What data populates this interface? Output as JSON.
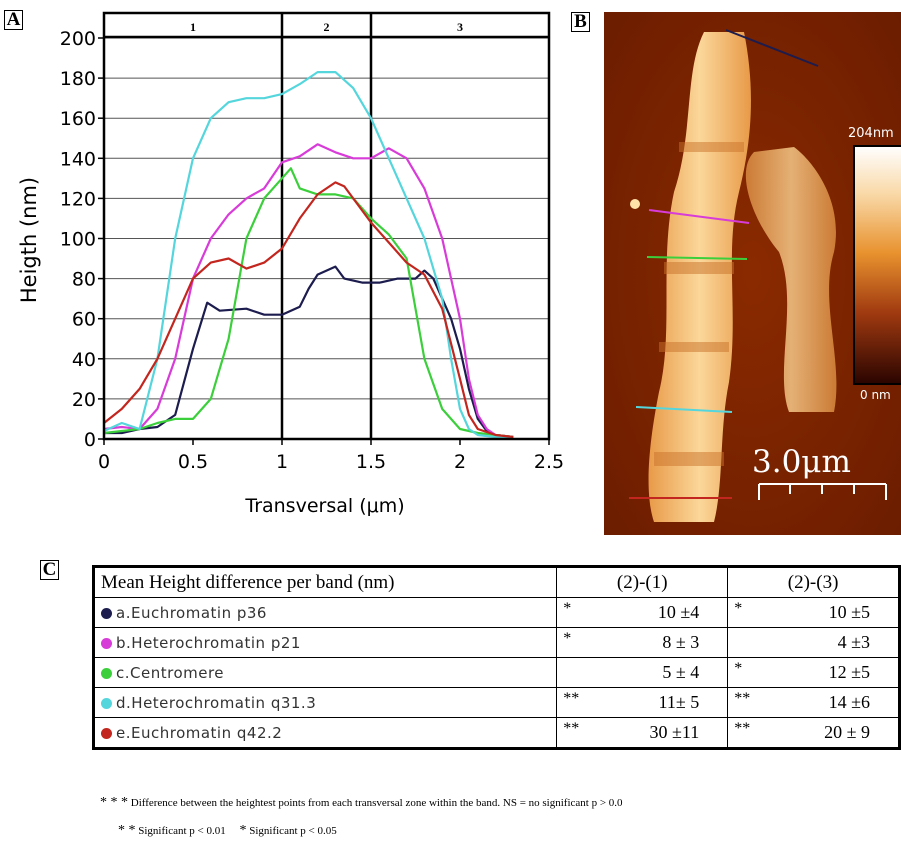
{
  "panels": {
    "a": "A",
    "b": "B",
    "c": "C"
  },
  "chart_data": {
    "type": "line",
    "xlabel": "Transversal (μm)",
    "ylabel": "Heigth (nm)",
    "xlim": [
      0,
      2.5
    ],
    "ylim": [
      0,
      200
    ],
    "xticks": [
      0,
      0.5,
      1,
      1.5,
      2,
      2.5
    ],
    "xtick_labels": [
      "0",
      "0.5",
      "1",
      "1.5",
      "2",
      "2.5"
    ],
    "yticks": [
      0,
      20,
      40,
      60,
      80,
      100,
      120,
      140,
      160,
      180,
      200
    ],
    "grid": "horizontal",
    "zones": [
      "1",
      "2",
      "3"
    ],
    "zone_boundaries": [
      1,
      1.5
    ],
    "series": [
      {
        "color": "#1c1c4e",
        "x": [
          0,
          0.1,
          0.2,
          0.3,
          0.4,
          0.5,
          0.58,
          0.65,
          0.8,
          0.9,
          1.0,
          1.1,
          1.15,
          1.2,
          1.3,
          1.35,
          1.45,
          1.55,
          1.65,
          1.75,
          1.8,
          1.85,
          1.9,
          1.95,
          2.0,
          2.05,
          2.1,
          2.15,
          2.2,
          2.3
        ],
        "y": [
          3,
          3,
          5,
          6,
          12,
          45,
          68,
          64,
          65,
          62,
          62,
          66,
          75,
          82,
          86,
          80,
          78,
          78,
          80,
          80,
          84,
          80,
          70,
          60,
          45,
          25,
          10,
          4,
          2,
          1
        ]
      },
      {
        "color": "#d83cd8",
        "x": [
          0,
          0.1,
          0.2,
          0.3,
          0.4,
          0.5,
          0.6,
          0.7,
          0.8,
          0.9,
          1.0,
          1.1,
          1.2,
          1.3,
          1.4,
          1.5,
          1.6,
          1.7,
          1.8,
          1.9,
          2.0,
          2.05,
          2.1,
          2.15,
          2.2,
          2.3
        ],
        "y": [
          5,
          6,
          5,
          15,
          40,
          80,
          100,
          112,
          120,
          125,
          138,
          141,
          147,
          143,
          140,
          140,
          145,
          140,
          125,
          100,
          60,
          30,
          12,
          5,
          2,
          1
        ]
      },
      {
        "color": "#3ccf3c",
        "x": [
          0,
          0.1,
          0.2,
          0.3,
          0.4,
          0.5,
          0.6,
          0.7,
          0.8,
          0.9,
          1.0,
          1.05,
          1.1,
          1.2,
          1.3,
          1.4,
          1.5,
          1.6,
          1.7,
          1.75,
          1.8,
          1.9,
          2.0,
          2.1,
          2.2,
          2.3
        ],
        "y": [
          3,
          4,
          5,
          8,
          10,
          10,
          20,
          50,
          100,
          120,
          130,
          135,
          125,
          122,
          122,
          120,
          110,
          102,
          90,
          65,
          40,
          15,
          5,
          3,
          2,
          1
        ]
      },
      {
        "color": "#55d6dc",
        "x": [
          0,
          0.1,
          0.2,
          0.3,
          0.4,
          0.5,
          0.6,
          0.7,
          0.8,
          0.9,
          1.0,
          1.1,
          1.2,
          1.3,
          1.4,
          1.5,
          1.6,
          1.7,
          1.8,
          1.9,
          1.95,
          2.0,
          2.05,
          2.1,
          2.2,
          2.3
        ],
        "y": [
          4,
          8,
          5,
          40,
          100,
          140,
          160,
          168,
          170,
          170,
          172,
          177,
          183,
          183,
          175,
          160,
          140,
          120,
          100,
          70,
          40,
          15,
          5,
          2,
          1,
          1
        ]
      },
      {
        "color": "#c2261e",
        "x": [
          0,
          0.1,
          0.2,
          0.3,
          0.4,
          0.5,
          0.6,
          0.7,
          0.8,
          0.9,
          1.0,
          1.1,
          1.2,
          1.3,
          1.35,
          1.4,
          1.5,
          1.6,
          1.7,
          1.8,
          1.9,
          2.0,
          2.05,
          2.1,
          2.2,
          2.3
        ],
        "y": [
          8,
          15,
          25,
          40,
          60,
          80,
          88,
          90,
          85,
          88,
          95,
          110,
          122,
          128,
          126,
          120,
          108,
          98,
          88,
          82,
          65,
          30,
          12,
          5,
          2,
          1
        ]
      }
    ]
  },
  "afm": {
    "scale_top": "204nm",
    "scale_bottom": "0 nm",
    "scale_bar": "3.0μm"
  },
  "table": {
    "header": [
      "Mean Height difference per band  (nm)",
      "(2)-(1)",
      "(2)-(3)"
    ],
    "rows": [
      {
        "label": "a.Euchromatin p36",
        "color": "#1c1c4e",
        "sig1": "*",
        "v1": "10 ±4",
        "sig2": "*",
        "v2": "10 ±5"
      },
      {
        "label": "b.Heterochromatin p21",
        "color": "#d83cd8",
        "sig1": "*",
        "v1": "8 ± 3",
        "sig2": "",
        "v2": "4 ±3"
      },
      {
        "label": "c.Centromere",
        "color": "#3ccf3c",
        "sig1": "",
        "v1": "5 ± 4",
        "sig2": "*",
        "v2": "12 ±5"
      },
      {
        "label": "d.Heterochromatin q31.3",
        "color": "#55d6dc",
        "sig1": "**",
        "v1": "11± 5",
        "sig2": "**",
        "v2": "14 ±6"
      },
      {
        "label": "e.Euchromatin q42.2",
        "color": "#c2261e",
        "sig1": "**",
        "v1": "30 ±11",
        "sig2": "**",
        "v2": "20 ± 9"
      }
    ]
  },
  "footnotes": {
    "stars3": "* * *",
    "note1": "Difference between the heightest points from each transversal zone within the band. NS = no significant p > 0.0",
    "stars2": "* *",
    "note2": "Significant p < 0.01",
    "stars1": "*",
    "note3": "Significant p < 0.05"
  }
}
